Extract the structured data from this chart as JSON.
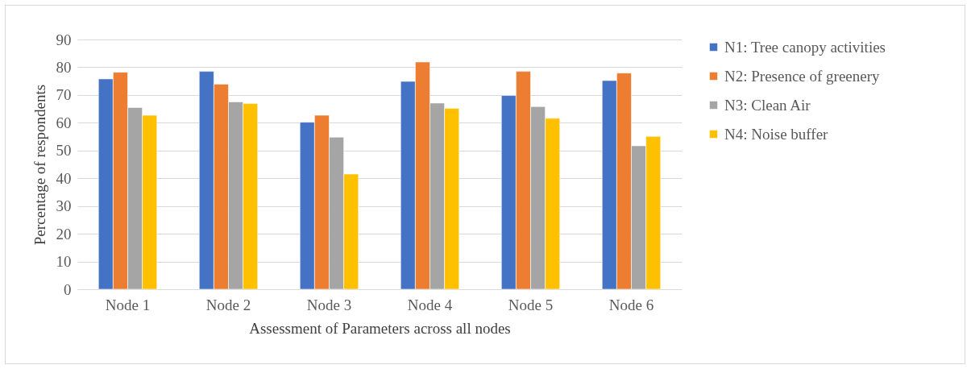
{
  "chart_data": {
    "type": "bar",
    "xlabel": "Assessment of Parameters across all nodes",
    "ylabel": "Percentage of respondents",
    "categories": [
      "Node 1",
      "Node 2",
      "Node 3",
      "Node 4",
      "Node 5",
      "Node 6"
    ],
    "series": [
      {
        "name": "N1: Tree canopy activities",
        "color": "#4472c4",
        "values": [
          75.8,
          78.5,
          60.2,
          74.9,
          69.8,
          75.2
        ]
      },
      {
        "name": "N2:  Presence of greenery",
        "color": "#ed7d31",
        "values": [
          78.2,
          73.9,
          62.7,
          81.9,
          78.5,
          77.9
        ]
      },
      {
        "name": "N3: Clean Air",
        "color": "#a5a5a5",
        "values": [
          65.5,
          67.5,
          54.8,
          67.1,
          65.8,
          51.7
        ]
      },
      {
        "name": "N4: Noise buffer",
        "color": "#ffc000",
        "values": [
          62.7,
          66.9,
          41.5,
          65.2,
          61.6,
          55.1
        ]
      }
    ],
    "ylim": [
      0,
      90
    ],
    "yticks": [
      0,
      10,
      20,
      30,
      40,
      50,
      60,
      70,
      80,
      90
    ],
    "grid": "y",
    "legend": "right"
  }
}
